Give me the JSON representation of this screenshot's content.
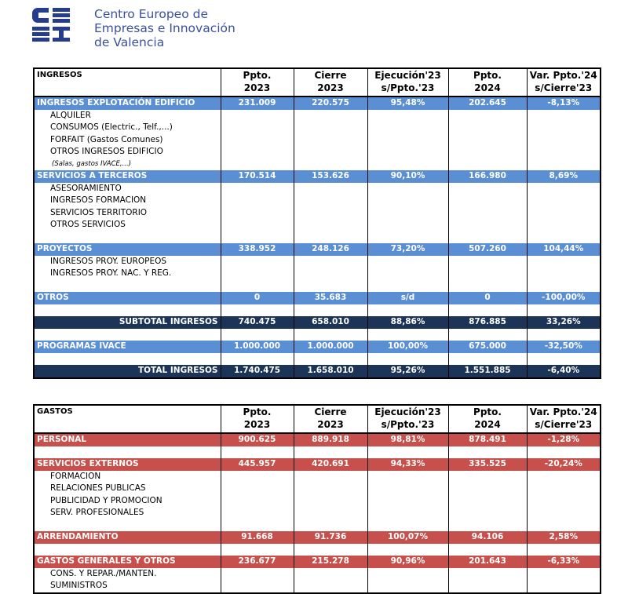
{
  "header": {
    "title_lines": [
      "Centro Europeo de",
      "Empresas e Innovación",
      "de Valencia"
    ]
  },
  "tables": [
    {
      "label": "INGRESOS",
      "color": "#5b8fd4",
      "total_color": "#1c3457",
      "columns": [
        [
          "Ppto.",
          "2023"
        ],
        [
          "Cierre",
          "2023"
        ],
        [
          "Ejecución'23",
          "s/Ppto.'23"
        ],
        [
          "Ppto.",
          "2024"
        ],
        [
          "Var. Ppto.'24",
          "s/Cierre'23"
        ]
      ],
      "rows": [
        {
          "style": "section",
          "label": "INGRESOS EXPLOTACIÓN EDIFICIO",
          "values": [
            "231.009",
            "220.575",
            "95,48%",
            "202.645",
            "-8,13%"
          ]
        },
        {
          "style": "item",
          "label": "ALQUILER"
        },
        {
          "style": "item",
          "label": "CONSUMOS (Electric., Telf.,...)"
        },
        {
          "style": "item",
          "label": "FORFAIT (Gastos Comunes)"
        },
        {
          "style": "item",
          "label": "OTROS INGRESOS EDIFICIO"
        },
        {
          "style": "note",
          "label": "(Salas, gastos IVACE,...)"
        },
        {
          "style": "section",
          "label": "SERVICIOS A TERCEROS",
          "values": [
            "170.514",
            "153.626",
            "90,10%",
            "166.980",
            "8,69%"
          ]
        },
        {
          "style": "item",
          "label": "ASESORAMIENTO"
        },
        {
          "style": "item",
          "label": "INGRESOS FORMACION"
        },
        {
          "style": "item",
          "label": "SERVICIOS TERRITORIO"
        },
        {
          "style": "item",
          "label": "OTROS SERVICIOS"
        },
        null,
        {
          "style": "section",
          "label": "PROYECTOS",
          "values": [
            "338.952",
            "248.126",
            "73,20%",
            "507.260",
            "104,44%"
          ]
        },
        {
          "style": "item",
          "label": "INGRESOS PROY. EUROPEOS"
        },
        {
          "style": "item",
          "label": "INGRESOS PROY. NAC. Y REG."
        },
        null,
        {
          "style": "section",
          "label": "OTROS",
          "values": [
            "0",
            "35.683",
            "s/d",
            "0",
            "-100,00%"
          ]
        },
        null,
        {
          "style": "total",
          "label": "SUBTOTAL INGRESOS",
          "values": [
            "740.475",
            "658.010",
            "88,86%",
            "876.885",
            "33,26%"
          ]
        },
        null,
        {
          "style": "section",
          "label": "PROGRAMAS IVACE",
          "values": [
            "1.000.000",
            "1.000.000",
            "100,00%",
            "675.000",
            "-32,50%"
          ]
        },
        null,
        {
          "style": "total",
          "label": "TOTAL INGRESOS",
          "values": [
            "1.740.475",
            "1.658.010",
            "95,26%",
            "1.551.885",
            "-6,40%"
          ]
        }
      ]
    },
    {
      "label": "GASTOS",
      "color": "#c8504c",
      "total_color": "#1c3457",
      "columns": [
        [
          "Ppto.",
          "2023"
        ],
        [
          "Cierre",
          "2023"
        ],
        [
          "Ejecución'23",
          "s/Ppto.'23"
        ],
        [
          "Ppto.",
          "2024"
        ],
        [
          "Var. Ppto.'24",
          "s/Cierre'23"
        ]
      ],
      "rows": [
        {
          "style": "section",
          "label": "PERSONAL",
          "values": [
            "900.625",
            "889.918",
            "98,81%",
            "878.491",
            "-1,28%"
          ]
        },
        null,
        {
          "style": "section",
          "label": "SERVICIOS EXTERNOS",
          "values": [
            "445.957",
            "420.691",
            "94,33%",
            "335.525",
            "-20,24%"
          ]
        },
        {
          "style": "item",
          "label": "FORMACION"
        },
        {
          "style": "item",
          "label": "RELACIONES PUBLICAS"
        },
        {
          "style": "item",
          "label": "PUBLICIDAD Y PROMOCION"
        },
        {
          "style": "item",
          "label": "SERV. PROFESIONALES"
        },
        null,
        {
          "style": "section",
          "label": "ARRENDAMIENTO",
          "values": [
            "91.668",
            "91.736",
            "100,07%",
            "94.106",
            "2,58%"
          ]
        },
        null,
        {
          "style": "section",
          "label": "GASTOS GENERALES Y OTROS",
          "values": [
            "236.677",
            "215.278",
            "90,96%",
            "201.643",
            "-6,33%"
          ]
        },
        {
          "style": "item",
          "label": "CONS. Y REPAR./MANTEN."
        },
        {
          "style": "item",
          "label": "SUMINISTROS"
        }
      ]
    }
  ]
}
